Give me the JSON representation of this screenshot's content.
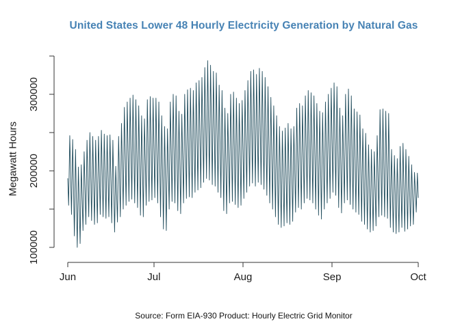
{
  "title": {
    "text": "United States Lower 48 Hourly Electricity Generation by Natural Gas",
    "color": "#4682B4"
  },
  "y_axis": {
    "label": "Megawatt Hours"
  },
  "source": {
    "text": "Source: Form EIA-930 Product: Hourly Electric Grid Monitor"
  },
  "chart_data": {
    "type": "line",
    "title": "United States Lower 48 Hourly Electricity Generation by Natural Gas",
    "xlabel": "",
    "ylabel": "Megawatt Hours",
    "ylim": [
      100000,
      350000
    ],
    "grid": false,
    "legend": "none",
    "line_color": "#1E4A5A",
    "axis_color": "#333333",
    "text_color": "#1A1A1A",
    "x_range": "hourly data, Jun 1 through Oct 1",
    "days_total": 122,
    "x_ticks": [
      {
        "label": "Jun",
        "day": 0
      },
      {
        "label": "Jul",
        "day": 30
      },
      {
        "label": "Aug",
        "day": 61
      },
      {
        "label": "Sep",
        "day": 92
      },
      {
        "label": "Oct",
        "day": 122
      }
    ],
    "y_ticks": [
      {
        "value": 100000,
        "label": "100000"
      },
      {
        "value": 150000,
        "label": ""
      },
      {
        "value": 200000,
        "label": "200000"
      },
      {
        "value": 250000,
        "label": ""
      },
      {
        "value": 300000,
        "label": "300000"
      },
      {
        "value": 350000,
        "label": ""
      }
    ],
    "series": [
      {
        "name": "US Lower 48 hourly natural gas generation (MWh), shown as daily trough/peak envelope",
        "start_value": 190000,
        "end_value": 165000,
        "daily_high": [
          246000,
          241000,
          228000,
          205000,
          208000,
          225000,
          240000,
          250000,
          245000,
          240000,
          245000,
          253000,
          248000,
          246000,
          247000,
          240000,
          206000,
          245000,
          262000,
          283000,
          290000,
          295000,
          299000,
          293000,
          285000,
          272000,
          268000,
          293000,
          297000,
          295000,
          295000,
          290000,
          272000,
          258000,
          255000,
          290000,
          300000,
          298000,
          278000,
          274000,
          300000,
          306000,
          308000,
          305000,
          315000,
          318000,
          322000,
          335000,
          344000,
          338000,
          330000,
          328000,
          312000,
          305000,
          282000,
          275000,
          300000,
          303000,
          295000,
          288000,
          292000,
          305000,
          318000,
          330000,
          332000,
          326000,
          334000,
          330000,
          322000,
          310000,
          296000,
          285000,
          272000,
          258000,
          252000,
          256000,
          262000,
          255000,
          258000,
          282000,
          288000,
          285000,
          298000,
          305000,
          302000,
          298000,
          288000,
          278000,
          276000,
          290000,
          300000,
          308000,
          315000,
          310000,
          282000,
          272000,
          300000,
          307000,
          298000,
          281000,
          277000,
          273000,
          255000,
          249000,
          234000,
          228000,
          225000,
          246000,
          280000,
          281000,
          278000,
          275000,
          228000,
          220000,
          216000,
          232000,
          236000,
          228000,
          219000,
          208000,
          198000,
          197000
        ],
        "daily_low": [
          155000,
          143000,
          115000,
          100000,
          105000,
          122000,
          130000,
          140000,
          135000,
          130000,
          132000,
          143000,
          140000,
          138000,
          140000,
          132000,
          120000,
          133000,
          140000,
          150000,
          155000,
          160000,
          163000,
          158000,
          152000,
          142000,
          140000,
          155000,
          160000,
          162000,
          165000,
          158000,
          140000,
          124000,
          122000,
          150000,
          160000,
          158000,
          148000,
          144000,
          158000,
          164000,
          166000,
          165000,
          172000,
          175000,
          178000,
          185000,
          190000,
          188000,
          182000,
          180000,
          172000,
          165000,
          148000,
          144000,
          158000,
          160000,
          156000,
          152000,
          155000,
          164000,
          172000,
          180000,
          184000,
          180000,
          185000,
          182000,
          176000,
          168000,
          158000,
          150000,
          140000,
          130000,
          126000,
          128000,
          132000,
          130000,
          134000,
          146000,
          152000,
          150000,
          158000,
          164000,
          162000,
          158000,
          150000,
          142000,
          137000,
          150000,
          158000,
          164000,
          172000,
          168000,
          152000,
          145000,
          158000,
          162000,
          156000,
          150000,
          146000,
          143000,
          134000,
          130000,
          124000,
          120000,
          122000,
          128000,
          140000,
          142000,
          140000,
          138000,
          126000,
          120000,
          118000,
          120000,
          126000,
          121000,
          124000,
          128000,
          130000,
          146000
        ]
      }
    ]
  }
}
